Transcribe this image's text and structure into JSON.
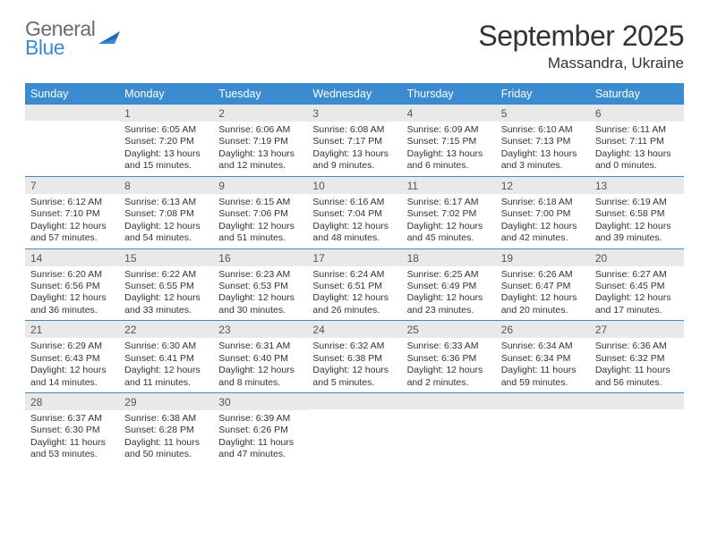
{
  "brand": {
    "word1": "General",
    "word2": "Blue",
    "word1_color": "#6b6b6b",
    "word2_color": "#3a8bd0",
    "mark_color": "#1f6db5"
  },
  "title": "September 2025",
  "location": "Massandra, Ukraine",
  "colors": {
    "header_bg": "#3a8bd0",
    "header_fg": "#ffffff",
    "daynum_bg": "#e9e9e9",
    "daynum_fg": "#555555",
    "rule": "#3a8bd0",
    "text": "#333333",
    "page_bg": "#ffffff"
  },
  "typography": {
    "title_fontsize": 32,
    "location_fontsize": 17,
    "header_fontsize": 12.5,
    "daynum_fontsize": 12,
    "body_fontsize": 10.5
  },
  "day_names": [
    "Sunday",
    "Monday",
    "Tuesday",
    "Wednesday",
    "Thursday",
    "Friday",
    "Saturday"
  ],
  "weeks": [
    [
      {
        "blank": true
      },
      {
        "num": "1",
        "sunrise": "Sunrise: 6:05 AM",
        "sunset": "Sunset: 7:20 PM",
        "day1": "Daylight: 13 hours",
        "day2": "and 15 minutes."
      },
      {
        "num": "2",
        "sunrise": "Sunrise: 6:06 AM",
        "sunset": "Sunset: 7:19 PM",
        "day1": "Daylight: 13 hours",
        "day2": "and 12 minutes."
      },
      {
        "num": "3",
        "sunrise": "Sunrise: 6:08 AM",
        "sunset": "Sunset: 7:17 PM",
        "day1": "Daylight: 13 hours",
        "day2": "and 9 minutes."
      },
      {
        "num": "4",
        "sunrise": "Sunrise: 6:09 AM",
        "sunset": "Sunset: 7:15 PM",
        "day1": "Daylight: 13 hours",
        "day2": "and 6 minutes."
      },
      {
        "num": "5",
        "sunrise": "Sunrise: 6:10 AM",
        "sunset": "Sunset: 7:13 PM",
        "day1": "Daylight: 13 hours",
        "day2": "and 3 minutes."
      },
      {
        "num": "6",
        "sunrise": "Sunrise: 6:11 AM",
        "sunset": "Sunset: 7:11 PM",
        "day1": "Daylight: 13 hours",
        "day2": "and 0 minutes."
      }
    ],
    [
      {
        "num": "7",
        "sunrise": "Sunrise: 6:12 AM",
        "sunset": "Sunset: 7:10 PM",
        "day1": "Daylight: 12 hours",
        "day2": "and 57 minutes."
      },
      {
        "num": "8",
        "sunrise": "Sunrise: 6:13 AM",
        "sunset": "Sunset: 7:08 PM",
        "day1": "Daylight: 12 hours",
        "day2": "and 54 minutes."
      },
      {
        "num": "9",
        "sunrise": "Sunrise: 6:15 AM",
        "sunset": "Sunset: 7:06 PM",
        "day1": "Daylight: 12 hours",
        "day2": "and 51 minutes."
      },
      {
        "num": "10",
        "sunrise": "Sunrise: 6:16 AM",
        "sunset": "Sunset: 7:04 PM",
        "day1": "Daylight: 12 hours",
        "day2": "and 48 minutes."
      },
      {
        "num": "11",
        "sunrise": "Sunrise: 6:17 AM",
        "sunset": "Sunset: 7:02 PM",
        "day1": "Daylight: 12 hours",
        "day2": "and 45 minutes."
      },
      {
        "num": "12",
        "sunrise": "Sunrise: 6:18 AM",
        "sunset": "Sunset: 7:00 PM",
        "day1": "Daylight: 12 hours",
        "day2": "and 42 minutes."
      },
      {
        "num": "13",
        "sunrise": "Sunrise: 6:19 AM",
        "sunset": "Sunset: 6:58 PM",
        "day1": "Daylight: 12 hours",
        "day2": "and 39 minutes."
      }
    ],
    [
      {
        "num": "14",
        "sunrise": "Sunrise: 6:20 AM",
        "sunset": "Sunset: 6:56 PM",
        "day1": "Daylight: 12 hours",
        "day2": "and 36 minutes."
      },
      {
        "num": "15",
        "sunrise": "Sunrise: 6:22 AM",
        "sunset": "Sunset: 6:55 PM",
        "day1": "Daylight: 12 hours",
        "day2": "and 33 minutes."
      },
      {
        "num": "16",
        "sunrise": "Sunrise: 6:23 AM",
        "sunset": "Sunset: 6:53 PM",
        "day1": "Daylight: 12 hours",
        "day2": "and 30 minutes."
      },
      {
        "num": "17",
        "sunrise": "Sunrise: 6:24 AM",
        "sunset": "Sunset: 6:51 PM",
        "day1": "Daylight: 12 hours",
        "day2": "and 26 minutes."
      },
      {
        "num": "18",
        "sunrise": "Sunrise: 6:25 AM",
        "sunset": "Sunset: 6:49 PM",
        "day1": "Daylight: 12 hours",
        "day2": "and 23 minutes."
      },
      {
        "num": "19",
        "sunrise": "Sunrise: 6:26 AM",
        "sunset": "Sunset: 6:47 PM",
        "day1": "Daylight: 12 hours",
        "day2": "and 20 minutes."
      },
      {
        "num": "20",
        "sunrise": "Sunrise: 6:27 AM",
        "sunset": "Sunset: 6:45 PM",
        "day1": "Daylight: 12 hours",
        "day2": "and 17 minutes."
      }
    ],
    [
      {
        "num": "21",
        "sunrise": "Sunrise: 6:29 AM",
        "sunset": "Sunset: 6:43 PM",
        "day1": "Daylight: 12 hours",
        "day2": "and 14 minutes."
      },
      {
        "num": "22",
        "sunrise": "Sunrise: 6:30 AM",
        "sunset": "Sunset: 6:41 PM",
        "day1": "Daylight: 12 hours",
        "day2": "and 11 minutes."
      },
      {
        "num": "23",
        "sunrise": "Sunrise: 6:31 AM",
        "sunset": "Sunset: 6:40 PM",
        "day1": "Daylight: 12 hours",
        "day2": "and 8 minutes."
      },
      {
        "num": "24",
        "sunrise": "Sunrise: 6:32 AM",
        "sunset": "Sunset: 6:38 PM",
        "day1": "Daylight: 12 hours",
        "day2": "and 5 minutes."
      },
      {
        "num": "25",
        "sunrise": "Sunrise: 6:33 AM",
        "sunset": "Sunset: 6:36 PM",
        "day1": "Daylight: 12 hours",
        "day2": "and 2 minutes."
      },
      {
        "num": "26",
        "sunrise": "Sunrise: 6:34 AM",
        "sunset": "Sunset: 6:34 PM",
        "day1": "Daylight: 11 hours",
        "day2": "and 59 minutes."
      },
      {
        "num": "27",
        "sunrise": "Sunrise: 6:36 AM",
        "sunset": "Sunset: 6:32 PM",
        "day1": "Daylight: 11 hours",
        "day2": "and 56 minutes."
      }
    ],
    [
      {
        "num": "28",
        "sunrise": "Sunrise: 6:37 AM",
        "sunset": "Sunset: 6:30 PM",
        "day1": "Daylight: 11 hours",
        "day2": "and 53 minutes."
      },
      {
        "num": "29",
        "sunrise": "Sunrise: 6:38 AM",
        "sunset": "Sunset: 6:28 PM",
        "day1": "Daylight: 11 hours",
        "day2": "and 50 minutes."
      },
      {
        "num": "30",
        "sunrise": "Sunrise: 6:39 AM",
        "sunset": "Sunset: 6:26 PM",
        "day1": "Daylight: 11 hours",
        "day2": "and 47 minutes."
      },
      {
        "blank": true
      },
      {
        "blank": true
      },
      {
        "blank": true
      },
      {
        "blank": true
      }
    ]
  ]
}
